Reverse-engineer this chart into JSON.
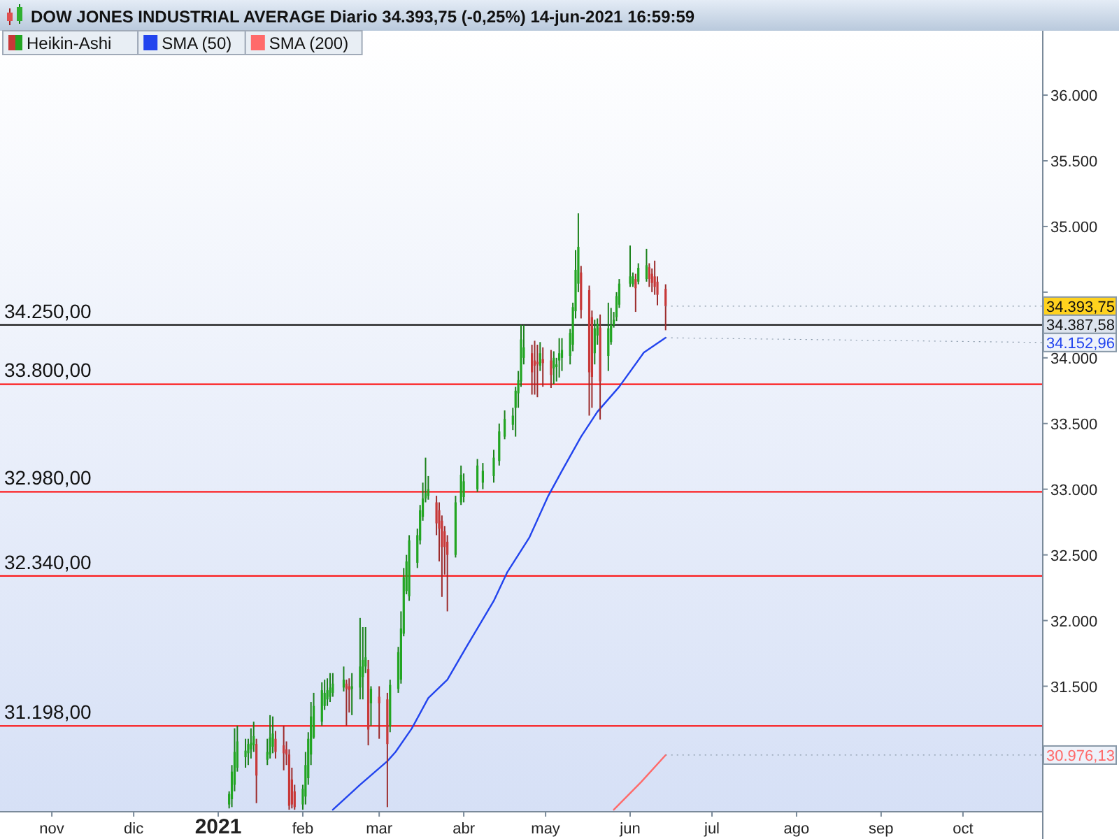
{
  "chart_data": {
    "type": "candlestick",
    "title": "DOW JONES INDUSTRIAL AVERAGE Diario 34.393,75 (-0,25%) 14-jun-2021 16:59:59",
    "series": [
      {
        "name": "Heikin-Ashi",
        "color": "#22a522",
        "x": [
          "2021-01-05",
          "2021-01-06",
          "2021-01-07",
          "2021-01-08",
          "2021-01-11",
          "2021-01-12",
          "2021-01-13",
          "2021-01-14",
          "2021-01-19",
          "2021-01-20",
          "2021-01-21",
          "2021-02-01",
          "2021-02-02",
          "2021-02-03",
          "2021-02-04",
          "2021-02-05",
          "2021-02-08",
          "2021-02-09",
          "2021-02-10",
          "2021-02-11",
          "2021-02-12",
          "2021-02-16",
          "2021-02-19",
          "2021-02-22",
          "2021-02-23",
          "2021-02-24",
          "2021-02-26",
          "2021-03-05",
          "2021-03-08",
          "2021-03-09",
          "2021-03-10",
          "2021-03-11",
          "2021-03-12",
          "2021-03-15",
          "2021-03-16",
          "2021-03-17",
          "2021-03-18",
          "2021-03-19",
          "2021-03-29",
          "2021-03-31",
          "2021-04-01",
          "2021-04-06",
          "2021-04-08",
          "2021-04-12",
          "2021-04-14",
          "2021-04-16",
          "2021-04-19",
          "2021-04-20",
          "2021-04-21",
          "2021-04-22",
          "2021-04-23",
          "2021-04-29",
          "2021-05-04",
          "2021-05-05",
          "2021-05-06",
          "2021-05-07",
          "2021-05-10",
          "2021-05-11",
          "2021-05-12",
          "2021-05-13",
          "2021-05-19",
          "2021-05-20",
          "2021-05-24",
          "2021-05-25",
          "2021-05-26",
          "2021-05-27",
          "2021-05-28",
          "2021-06-01",
          "2021-06-02",
          "2021-06-04",
          "2021-06-07"
        ],
        "ohlc": [
          [
            30600,
            30700,
            30570,
            30680
          ],
          [
            30640,
            30900,
            30580,
            30850
          ],
          [
            30750,
            31180,
            30700,
            31000
          ],
          [
            30880,
            31200,
            30850,
            31080
          ],
          [
            30960,
            31100,
            30880,
            31010
          ],
          [
            30990,
            31100,
            30900,
            31060
          ],
          [
            31020,
            31180,
            30950,
            31070
          ],
          [
            31050,
            31230,
            31000,
            31120
          ],
          [
            30940,
            31100,
            30900,
            31000
          ],
          [
            30980,
            31280,
            30950,
            31110
          ],
          [
            31040,
            31270,
            30990,
            31140
          ],
          [
            30600,
            30750,
            30560,
            30720
          ],
          [
            30660,
            31000,
            30600,
            30900
          ],
          [
            30800,
            31150,
            30750,
            31100
          ],
          [
            30980,
            31380,
            30900,
            31270
          ],
          [
            31110,
            31450,
            31100,
            31350
          ],
          [
            31230,
            31530,
            31200,
            31470
          ],
          [
            31350,
            31550,
            31320,
            31450
          ],
          [
            31400,
            31560,
            31350,
            31470
          ],
          [
            31420,
            31600,
            31380,
            31490
          ],
          [
            31450,
            31600,
            31420,
            31520
          ],
          [
            31490,
            31650,
            31460,
            31550
          ],
          [
            31480,
            31600,
            31280,
            31500
          ],
          [
            31490,
            32020,
            31400,
            31650
          ],
          [
            31570,
            31950,
            31400,
            31700
          ],
          [
            31650,
            31950,
            31600,
            31720
          ],
          [
            31370,
            31500,
            31200,
            31480
          ],
          [
            31195,
            31550,
            31150,
            31510
          ],
          [
            31480,
            31800,
            31450,
            31760
          ],
          [
            31550,
            32070,
            31520,
            31940
          ],
          [
            31900,
            32400,
            31880,
            32330
          ],
          [
            32225,
            32500,
            32200,
            32450
          ],
          [
            32185,
            32650,
            32150,
            32610
          ],
          [
            32440,
            32700,
            32400,
            32650
          ],
          [
            32610,
            32880,
            32580,
            32840
          ],
          [
            32790,
            33050,
            32760,
            32930
          ],
          [
            32930,
            33240,
            32900,
            32970
          ],
          [
            32950,
            33100,
            32920,
            33000
          ],
          [
            32500,
            32950,
            32480,
            32900
          ],
          [
            32900,
            33180,
            32880,
            33110
          ],
          [
            32940,
            33120,
            32900,
            33060
          ],
          [
            33000,
            33230,
            32980,
            33180
          ],
          [
            33050,
            33200,
            33000,
            33140
          ],
          [
            33100,
            33300,
            33050,
            33240
          ],
          [
            33215,
            33500,
            33180,
            33440
          ],
          [
            33400,
            33600,
            33380,
            33535
          ],
          [
            33490,
            33620,
            33450,
            33560
          ],
          [
            33620,
            33780,
            33400,
            33750
          ],
          [
            33730,
            33900,
            33620,
            33830
          ],
          [
            33820,
            34250,
            33780,
            34140
          ],
          [
            34000,
            34250,
            33950,
            34080
          ],
          [
            33940,
            34120,
            33900,
            34035
          ],
          [
            33920,
            34050,
            33800,
            34000
          ],
          [
            33930,
            34000,
            33820,
            33950
          ],
          [
            33980,
            34150,
            33850,
            34035
          ],
          [
            34000,
            34150,
            33900,
            34060
          ],
          [
            34015,
            34220,
            33950,
            34190
          ],
          [
            34100,
            34420,
            34050,
            34386
          ],
          [
            34355,
            34820,
            34300,
            34670
          ],
          [
            34565,
            35100,
            34500,
            34845
          ],
          [
            34035,
            34290,
            33950,
            34225
          ],
          [
            34170,
            34300,
            34100,
            34260
          ],
          [
            34015,
            34420,
            33900,
            34225
          ],
          [
            34120,
            34380,
            34100,
            34250
          ],
          [
            34250,
            34350,
            34230,
            34290
          ],
          [
            34310,
            34500,
            34280,
            34470
          ],
          [
            34405,
            34600,
            34380,
            34565
          ],
          [
            34565,
            34855,
            34540,
            34620
          ],
          [
            34560,
            34650,
            34540,
            34620
          ],
          [
            34580,
            34720,
            34560,
            34685
          ],
          [
            34600,
            34830,
            34580,
            34705
          ]
        ]
      },
      {
        "color": "#c83838",
        "x": [
          "2021-01-15",
          "2021-01-22",
          "2021-01-25",
          "2021-01-26",
          "2021-01-27",
          "2021-01-28",
          "2021-01-29",
          "2021-02-17",
          "2021-02-18",
          "2021-02-25",
          "2021-03-01",
          "2021-03-04",
          "2021-03-22",
          "2021-03-23",
          "2021-03-24",
          "2021-03-25",
          "2021-03-26",
          "2021-04-26",
          "2021-04-27",
          "2021-04-28",
          "2021-04-30",
          "2021-05-03",
          "2021-05-14",
          "2021-05-17",
          "2021-05-18",
          "2021-05-21",
          "2021-06-03",
          "2021-06-08",
          "2021-06-09",
          "2021-06-10",
          "2021-06-11",
          "2021-06-14"
        ],
        "ohlc": [
          [
            31060,
            31100,
            30610,
            30820
          ],
          [
            31100,
            31160,
            30950,
            31000
          ],
          [
            31050,
            31200,
            30860,
            30990
          ],
          [
            31020,
            31080,
            30900,
            30980
          ],
          [
            30980,
            31020,
            30560,
            30590
          ],
          [
            30790,
            30880,
            30570,
            30600
          ],
          [
            30700,
            30750,
            30560,
            30580
          ],
          [
            31520,
            31550,
            31200,
            31480
          ],
          [
            31500,
            31560,
            31300,
            31470
          ],
          [
            31630,
            31700,
            31050,
            31170
          ],
          [
            31420,
            31500,
            31100,
            31370
          ],
          [
            31400,
            31450,
            30580,
            31060
          ],
          [
            32900,
            32950,
            32650,
            32740
          ],
          [
            32840,
            32900,
            32450,
            32700
          ],
          [
            32760,
            32800,
            32180,
            32560
          ],
          [
            32680,
            32720,
            32350,
            32560
          ],
          [
            32600,
            32650,
            32070,
            32500
          ],
          [
            34035,
            34100,
            33720,
            33890
          ],
          [
            33980,
            34130,
            33720,
            33940
          ],
          [
            33970,
            34100,
            33700,
            33950
          ],
          [
            33990,
            34080,
            33780,
            33960
          ],
          [
            33980,
            34060,
            33770,
            33870
          ],
          [
            34650,
            34700,
            34300,
            34365
          ],
          [
            34515,
            34550,
            33560,
            33890
          ],
          [
            34310,
            34360,
            33620,
            33855
          ],
          [
            34230,
            34330,
            33530,
            33820
          ],
          [
            34600,
            34640,
            34350,
            34530
          ],
          [
            34690,
            34720,
            34540,
            34600
          ],
          [
            34640,
            34680,
            34500,
            34570
          ],
          [
            34620,
            34740,
            34480,
            34540
          ],
          [
            34580,
            34620,
            34400,
            34480
          ],
          [
            34525,
            34560,
            34210,
            34393.75
          ]
        ]
      },
      {
        "name": "SMA (50)",
        "type": "line",
        "color": "#2244ee",
        "x": [
          "2021-02-12",
          "2021-02-22",
          "2021-03-04",
          "2021-03-07",
          "2021-03-13",
          "2021-03-19",
          "2021-03-26",
          "2021-04-02",
          "2021-04-12",
          "2021-04-17",
          "2021-04-25",
          "2021-05-02",
          "2021-05-07",
          "2021-05-14",
          "2021-05-20",
          "2021-05-28",
          "2021-06-06",
          "2021-06-14"
        ],
        "values": [
          30560,
          30750,
          30930,
          31000,
          31180,
          31410,
          31550,
          31800,
          32150,
          32370,
          32630,
          32950,
          33140,
          33400,
          33590,
          33780,
          34040,
          34152.96
        ]
      },
      {
        "name": "SMA (200)",
        "type": "line",
        "color": "#ff6a6a",
        "x": [
          "2021-05-26",
          "2021-06-05",
          "2021-06-14"
        ],
        "values": [
          30560,
          30770,
          30976.13
        ]
      }
    ],
    "xlim": [
      "2020-10-13",
      "2021-10-30"
    ],
    "xticks": [
      {
        "value": "2020-11-01",
        "label": "nov"
      },
      {
        "value": "2020-12-01",
        "label": "dic"
      },
      {
        "value": "2021-01-01",
        "label": "2021"
      },
      {
        "value": "2021-02-01",
        "label": "feb"
      },
      {
        "value": "2021-03-01",
        "label": "mar"
      },
      {
        "value": "2021-04-01",
        "label": "abr"
      },
      {
        "value": "2021-05-01",
        "label": "may"
      },
      {
        "value": "2021-06-01",
        "label": "jun"
      },
      {
        "value": "2021-07-01",
        "label": "jul"
      },
      {
        "value": "2021-08-01",
        "label": "ago"
      },
      {
        "value": "2021-09-01",
        "label": "sep"
      },
      {
        "value": "2021-10-01",
        "label": "oct"
      }
    ],
    "ylim": [
      30550,
      36490
    ],
    "yticks": [
      {
        "value": 31500,
        "label": "31.500"
      },
      {
        "value": 32000,
        "label": "32.000"
      },
      {
        "value": 32500,
        "label": "32.500"
      },
      {
        "value": 33000,
        "label": "33.000"
      },
      {
        "value": 33500,
        "label": "33.500"
      },
      {
        "value": 34000,
        "label": "34.000"
      },
      {
        "value": 34500,
        "label": null
      },
      {
        "value": 35000,
        "label": "35.000"
      },
      {
        "value": 35500,
        "label": "35.500"
      },
      {
        "value": 36000,
        "label": "36.000"
      }
    ],
    "ref_lines": [
      {
        "axis": "y",
        "value": 34250,
        "label": "34.250,00",
        "color": "#000000"
      },
      {
        "axis": "y",
        "value": 33800,
        "label": "33.800,00",
        "color": "#ff0000"
      },
      {
        "axis": "y",
        "value": 32980,
        "label": "32.980,00",
        "color": "#ff0000"
      },
      {
        "axis": "y",
        "value": 32340,
        "label": "32.340,00",
        "color": "#ff0000"
      },
      {
        "axis": "y",
        "value": 31198,
        "label": "31.198,00",
        "color": "#ff0000"
      }
    ],
    "annotations": [
      {
        "text": "34.393,75",
        "x": "2021-06-14",
        "y": 34393.75
      },
      "34.387,58",
      {
        "text": "34.152,96",
        "x": "2021-06-14",
        "y": 34152.96
      },
      {
        "text": "30.976,13",
        "x": "2021-06-14",
        "y": 30976.13
      }
    ],
    "legend": "top left"
  }
}
